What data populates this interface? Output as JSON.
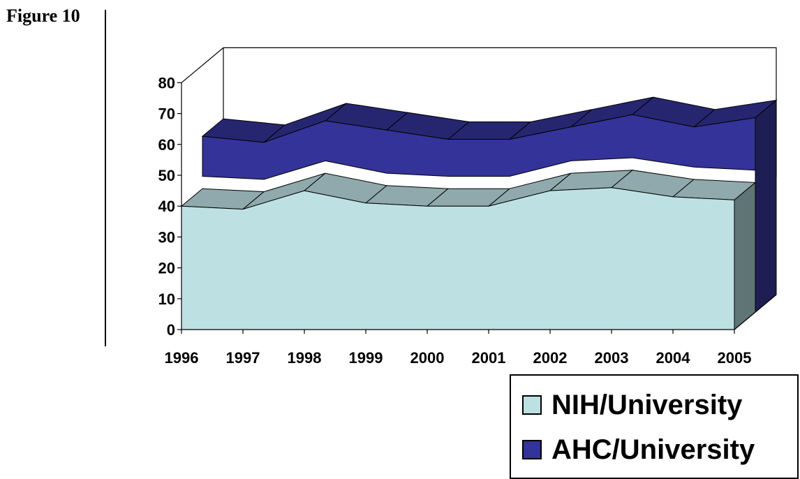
{
  "figure": {
    "label": "Figure 10"
  },
  "chart_data": {
    "type": "area",
    "title": "",
    "xlabel": "",
    "ylabel": "",
    "categories": [
      "1996",
      "1997",
      "1998",
      "1999",
      "2000",
      "2001",
      "2002",
      "2003",
      "2004",
      "2005"
    ],
    "ylim": [
      0,
      80
    ],
    "yticks": [
      "0",
      "10",
      "20",
      "30",
      "40",
      "50",
      "60",
      "70",
      "80"
    ],
    "series": [
      {
        "name": "NIH/University",
        "values": [
          40,
          39,
          45,
          41,
          40,
          40,
          45,
          46,
          43,
          42
        ],
        "color": "#bde0e3"
      },
      {
        "name": "AHC/University",
        "values": [
          57,
          55,
          62,
          59,
          56,
          56,
          60,
          64,
          60,
          63
        ],
        "color": "#333399"
      }
    ],
    "style": "3d-area",
    "grid": false,
    "legend_position": "bottom-right"
  },
  "legend": {
    "items": [
      {
        "label": "NIH/University",
        "color": "#bde0e3"
      },
      {
        "label": "AHC/University",
        "color": "#333399"
      }
    ]
  }
}
